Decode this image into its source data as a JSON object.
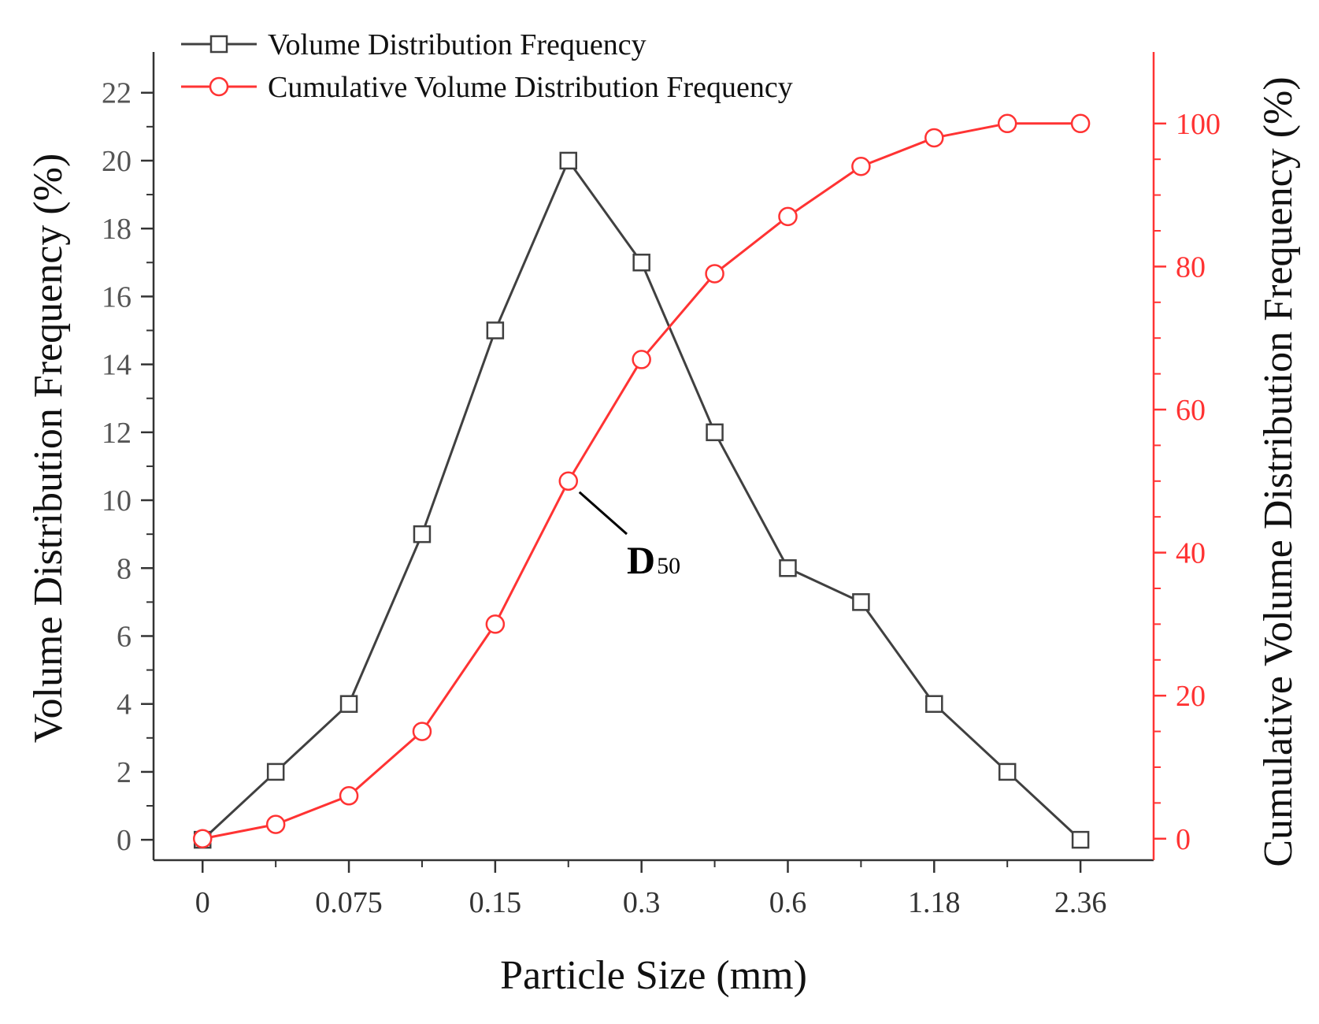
{
  "chart_data": {
    "type": "line",
    "xlabel": "Particle Size (mm)",
    "ylabel_left": "Volume Distribution Frequency (%)",
    "ylabel_right": "Cumulative Volume Distribution Frequency (%)",
    "x_index": [
      0,
      1,
      2,
      3,
      4,
      5,
      6,
      7,
      8,
      9,
      10,
      11,
      12
    ],
    "x_tick_labels": [
      {
        "index": 0,
        "label": "0"
      },
      {
        "index": 2,
        "label": "0.075"
      },
      {
        "index": 4,
        "label": "0.15"
      },
      {
        "index": 6,
        "label": "0.3"
      },
      {
        "index": 8,
        "label": "0.6"
      },
      {
        "index": 10,
        "label": "1.18"
      },
      {
        "index": 12,
        "label": "2.36"
      }
    ],
    "xlim": [
      -0.67,
      13.0
    ],
    "ylim_left": [
      -0.6,
      23.2
    ],
    "yticks_left": [
      0,
      2,
      4,
      6,
      8,
      10,
      12,
      14,
      16,
      18,
      20,
      22
    ],
    "ylim_right": [
      -3,
      110
    ],
    "yticks_right": [
      0,
      20,
      40,
      60,
      80,
      100
    ],
    "series": [
      {
        "name": "Volume Distribution Frequency",
        "axis": "left",
        "marker": "square",
        "color": "#404040",
        "values": [
          0,
          2,
          4,
          9,
          15,
          20,
          17,
          12,
          8,
          7,
          4,
          2,
          0
        ]
      },
      {
        "name": "Cumulative Volume Distribution Frequency",
        "axis": "right",
        "marker": "circle",
        "color": "#ff3333",
        "values": [
          0,
          2,
          6,
          15,
          30,
          50,
          67,
          79,
          87,
          94,
          98,
          100,
          100
        ]
      }
    ],
    "annotation": {
      "main": "D",
      "subscript": "50",
      "points_to_index": 5,
      "series": "Cumulative Volume Distribution Frequency"
    }
  }
}
